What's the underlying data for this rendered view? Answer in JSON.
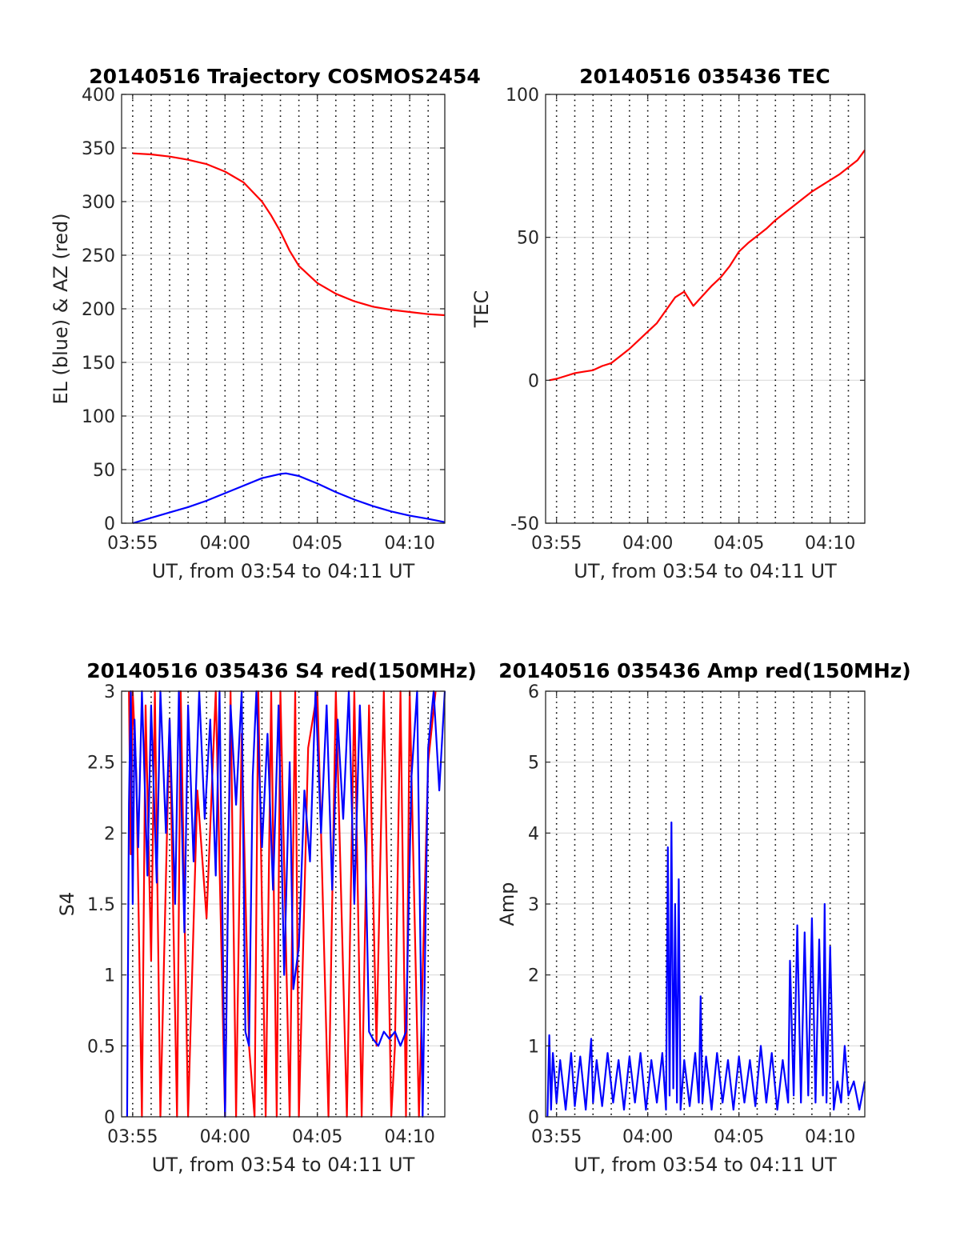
{
  "figure": {
    "background": "#ffffff",
    "colors": {
      "red": "#ff0000",
      "blue": "#0000ff",
      "grid": "#dcdcdc",
      "axis": "#262626",
      "vgrid": "#000000"
    }
  },
  "chart_data": [
    {
      "id": "trajectory",
      "type": "line",
      "title": "20140516 Trajectory COSMOS2454",
      "xlabel": "UT, from 03:54 to 04:11 UT",
      "ylabel": "EL (blue) & AZ (red)",
      "x_unit": "minutes after 03:54",
      "xlim": [
        0.4,
        17.9
      ],
      "ylim": [
        0,
        400
      ],
      "yticks": [
        0,
        50,
        100,
        150,
        200,
        250,
        300,
        350,
        400
      ],
      "xticks": [
        1,
        6,
        11,
        16
      ],
      "xtick_labels": [
        "03:55",
        "04:00",
        "04:05",
        "04:10"
      ],
      "grid": true,
      "series": [
        {
          "color": "#ff0000",
          "x": [
            1,
            2,
            3,
            4,
            5,
            6,
            7,
            8,
            8.5,
            9,
            9.5,
            10,
            11,
            12,
            13,
            14,
            15,
            16,
            17,
            17.9
          ],
          "y": [
            345,
            344,
            342,
            339,
            335,
            328,
            318,
            300,
            287,
            272,
            254,
            240,
            224,
            214,
            207,
            202,
            199,
            197,
            195,
            194
          ]
        },
        {
          "color": "#0000ff",
          "x": [
            1,
            2,
            3,
            4,
            5,
            6,
            7,
            8,
            9,
            9.3,
            10,
            11,
            12,
            13,
            14,
            15,
            16,
            17,
            17.9
          ],
          "y": [
            0,
            5,
            10,
            15,
            21,
            28,
            35,
            42,
            46,
            46.5,
            44,
            37,
            29,
            22,
            16,
            11,
            7,
            4,
            1
          ]
        }
      ]
    },
    {
      "id": "tec",
      "type": "line",
      "title": "20140516 035436 TEC",
      "xlabel": "UT, from 03:54 to 04:11 UT",
      "ylabel": "TEC",
      "x_unit": "minutes after 03:54",
      "xlim": [
        0.4,
        17.9
      ],
      "ylim": [
        -50,
        100
      ],
      "yticks": [
        -50,
        0,
        50,
        100
      ],
      "xticks": [
        1,
        6,
        11,
        16
      ],
      "xtick_labels": [
        "03:55",
        "04:00",
        "04:05",
        "04:10"
      ],
      "grid": true,
      "series": [
        {
          "color": "#ff0000",
          "x": [
            0.6,
            1,
            1.5,
            2,
            2.5,
            3,
            3.5,
            4,
            4.5,
            5,
            5.5,
            6,
            6.5,
            7,
            7.5,
            8,
            8.5,
            9,
            9.5,
            10,
            10.5,
            11,
            11.5,
            12,
            12.5,
            13,
            13.5,
            14,
            14.5,
            15,
            15.5,
            16,
            16.5,
            17,
            17.5,
            17.9
          ],
          "y": [
            0,
            0.5,
            1.5,
            2.5,
            3,
            3.5,
            5,
            6,
            8.5,
            11,
            14,
            17,
            20,
            24.5,
            29,
            31,
            26,
            29.5,
            33,
            36,
            40,
            45,
            48,
            50.5,
            53,
            56,
            58.5,
            61,
            63.5,
            66,
            68,
            70,
            72,
            74.5,
            77,
            80.5
          ]
        }
      ]
    },
    {
      "id": "s4",
      "type": "line",
      "title": "20140516 035436 S4 red(150MHz)",
      "xlabel": "UT, from 03:54 to 04:11 UT",
      "ylabel": "S4",
      "x_unit": "minutes after 03:54",
      "xlim": [
        0.4,
        17.9
      ],
      "ylim": [
        0,
        3
      ],
      "yticks": [
        0,
        0.5,
        1,
        1.5,
        2,
        2.5,
        3
      ],
      "ytick_labels": [
        "0",
        "0.5",
        "1",
        "1.5",
        "2",
        "2.5",
        "3"
      ],
      "xticks": [
        1,
        6,
        11,
        16
      ],
      "xtick_labels": [
        "03:55",
        "04:00",
        "04:05",
        "04:10"
      ],
      "grid": true,
      "series": [
        {
          "color": "#ff0000",
          "x": [
            0.8,
            0.9,
            1.0,
            1.2,
            1.5,
            1.7,
            2.0,
            2.2,
            2.5,
            3.0,
            3.4,
            3.6,
            4.0,
            4.5,
            5.0,
            5.5,
            6.0,
            6.3,
            6.6,
            6.9,
            7.3,
            7.6,
            7.8,
            8.2,
            8.5,
            8.8,
            9.0,
            9.5,
            9.8,
            10.0,
            10.5,
            11.0,
            11.6,
            12.0,
            12.6,
            13.0,
            13.4,
            13.8,
            14.2,
            14.6,
            15.0,
            15.2,
            15.5,
            15.8,
            16.0,
            16.5,
            17.0,
            17.4
          ],
          "y": [
            3,
            1.85,
            3,
            2.4,
            0,
            2.9,
            1.1,
            3,
            0,
            2.8,
            0,
            3,
            0,
            2.3,
            1.4,
            3,
            0,
            3,
            0,
            2.7,
            0.5,
            0,
            3,
            0,
            3,
            0,
            3,
            0,
            3,
            0,
            2.6,
            3,
            0,
            3,
            0,
            3,
            0,
            2.9,
            0.5,
            3,
            0,
            0.5,
            3,
            0,
            3,
            0,
            2.5,
            3
          ]
        },
        {
          "color": "#0000ff",
          "x": [
            0.7,
            0.8,
            0.9,
            1.0,
            1.1,
            1.3,
            1.5,
            1.8,
            2.0,
            2.3,
            2.5,
            2.8,
            3.0,
            3.3,
            3.5,
            3.8,
            4.0,
            4.3,
            4.6,
            4.9,
            5.2,
            5.5,
            5.7,
            6.0,
            6.3,
            6.6,
            6.9,
            7.1,
            7.3,
            7.5,
            7.7,
            8.0,
            8.3,
            8.6,
            8.9,
            9.2,
            9.5,
            9.7,
            10.0,
            10.3,
            10.6,
            10.9,
            11.2,
            11.5,
            11.8,
            12.1,
            12.4,
            12.7,
            13.0,
            13.3,
            13.6,
            13.8,
            14.0,
            14.3,
            14.6,
            14.9,
            15.2,
            15.5,
            15.8,
            16.1,
            16.4,
            16.7,
            17.0,
            17.3,
            17.6,
            17.9
          ],
          "y": [
            0,
            2.2,
            3,
            1.5,
            2.8,
            1.9,
            3,
            1.7,
            2.9,
            1.65,
            3,
            2.0,
            2.8,
            1.5,
            3,
            1.3,
            2.9,
            1.8,
            3,
            2.1,
            2.8,
            1.7,
            3,
            0,
            2.9,
            2.2,
            3,
            0.6,
            0.5,
            2.4,
            3,
            1.9,
            2.7,
            1.6,
            2.9,
            1.0,
            2.5,
            0.9,
            1.2,
            2.3,
            1.8,
            3,
            2.0,
            2.9,
            1.6,
            2.8,
            2.1,
            3,
            1.5,
            2.9,
            1.9,
            0.6,
            0.55,
            0.5,
            0.6,
            0.55,
            0.6,
            0.5,
            0.6,
            2.4,
            3,
            0,
            2.6,
            3,
            2.3,
            3
          ]
        }
      ]
    },
    {
      "id": "amp",
      "type": "line",
      "title": "20140516 035436 Amp red(150MHz)",
      "xlabel": "UT, from 03:54 to 04:11 UT",
      "ylabel": "Amp",
      "x_unit": "minutes after 03:54",
      "xlim": [
        0.4,
        17.9
      ],
      "ylim": [
        0,
        6
      ],
      "yticks": [
        0,
        1,
        2,
        3,
        4,
        5,
        6
      ],
      "xticks": [
        1,
        6,
        11,
        16
      ],
      "xtick_labels": [
        "03:55",
        "04:00",
        "04:05",
        "04:10"
      ],
      "grid": true,
      "series": [
        {
          "color": "#0000ff",
          "x": [
            0.5,
            0.6,
            0.7,
            0.8,
            1.0,
            1.2,
            1.5,
            1.8,
            2.0,
            2.3,
            2.6,
            2.9,
            3.0,
            3.2,
            3.5,
            3.8,
            4.1,
            4.4,
            4.7,
            5.0,
            5.3,
            5.6,
            5.9,
            6.2,
            6.5,
            6.8,
            7.0,
            7.1,
            7.2,
            7.3,
            7.4,
            7.5,
            7.6,
            7.7,
            7.8,
            8.0,
            8.3,
            8.6,
            8.8,
            8.9,
            9.0,
            9.2,
            9.5,
            9.8,
            10.1,
            10.4,
            10.7,
            11.0,
            11.3,
            11.6,
            11.9,
            12.2,
            12.5,
            12.8,
            13.1,
            13.4,
            13.7,
            13.8,
            14.0,
            14.2,
            14.4,
            14.6,
            14.8,
            15.0,
            15.2,
            15.4,
            15.6,
            15.7,
            15.8,
            16.0,
            16.2,
            16.4,
            16.6,
            16.8,
            17.0,
            17.3,
            17.6,
            17.9
          ],
          "y": [
            0,
            1.15,
            0.1,
            0.9,
            0.2,
            0.8,
            0.1,
            0.9,
            0.15,
            0.85,
            0.1,
            1.1,
            0.2,
            0.8,
            0.15,
            0.9,
            0.2,
            0.8,
            0.1,
            0.85,
            0.2,
            0.9,
            0.1,
            0.8,
            0.2,
            0.9,
            0.1,
            3.8,
            0.3,
            4.15,
            0.4,
            3.0,
            0.2,
            3.35,
            0.1,
            0.8,
            0.15,
            0.9,
            0.2,
            1.7,
            0.2,
            0.85,
            0.1,
            0.9,
            0.2,
            0.8,
            0.1,
            0.85,
            0.2,
            0.8,
            0.15,
            1.0,
            0.2,
            0.9,
            0.1,
            0.8,
            0.2,
            2.2,
            0.3,
            2.7,
            0.2,
            2.6,
            0.3,
            2.8,
            0.2,
            2.5,
            0.3,
            3.0,
            0.2,
            2.4,
            0.1,
            0.5,
            0.2,
            1.0,
            0.3,
            0.5,
            0.1,
            0.5
          ]
        }
      ]
    }
  ]
}
